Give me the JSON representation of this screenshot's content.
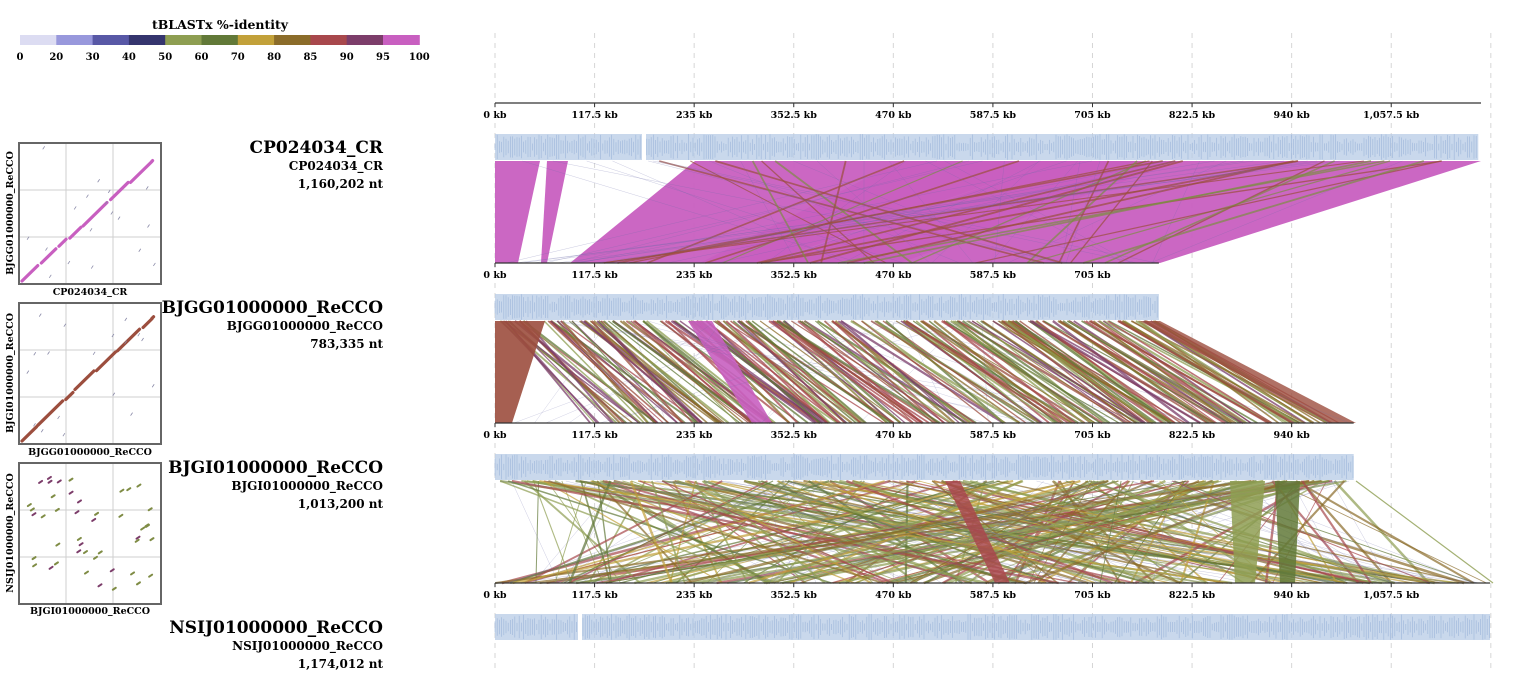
{
  "legend": {
    "title": "tBLASTx %-identity",
    "ticks": [
      "0",
      "20",
      "30",
      "40",
      "50",
      "60",
      "70",
      "80",
      "85",
      "90",
      "95",
      "100"
    ],
    "colors": [
      "#dcdcf2",
      "#9898dc",
      "#5858a6",
      "#35356e",
      "#8e9e52",
      "#627938",
      "#c2a13a",
      "#8b6c2a",
      "#a8484c",
      "#7c3d6a",
      "#c85fc0"
    ]
  },
  "axis": {
    "gridline_labels_kb": [
      0,
      117.5,
      235,
      352.5,
      470,
      587.5,
      705,
      822.5,
      940,
      1057.5
    ],
    "unit_suffix": " kb"
  },
  "genomes": [
    {
      "name": "CP024034_CR",
      "subname": "CP024034_CR",
      "length_label": "1,160,202 nt",
      "length_kb": 1160.202
    },
    {
      "name": "BJGG01000000_ReCCO",
      "subname": "BJGG01000000_ReCCO",
      "length_label": "783,335 nt",
      "length_kb": 783.335
    },
    {
      "name": "BJGI01000000_ReCCO",
      "subname": "BJGI01000000_ReCCO",
      "length_label": "1,013,200 nt",
      "length_kb": 1013.2
    },
    {
      "name": "NSIJ01000000_ReCCO",
      "subname": "NSIJ01000000_ReCCO",
      "length_label": "1,174,012 nt",
      "length_kb": 1174.012
    }
  ],
  "dotplots": [
    {
      "xlabel": "CP024034_CR",
      "ylabel": "BJGG01000000_ReCCO",
      "color": "#c85fc0"
    },
    {
      "xlabel": "BJGG01000000_ReCCO",
      "ylabel": "BJGI01000000_ReCCO",
      "color": "#9c4e3e"
    },
    {
      "xlabel": "BJGI01000000_ReCCO",
      "ylabel": "NSIJ01000000_ReCCO",
      "color": "#7f8c45"
    }
  ],
  "colors": {
    "track": "#b7cbe6",
    "track_dark": "#9ab3d8",
    "axis": "#333333",
    "grid": "#cccccc",
    "match_high": "#c85fc0",
    "match_mid": "#9c4e3e",
    "match_low": "#7f8c45",
    "match_faint": "#6a6aa8"
  }
}
